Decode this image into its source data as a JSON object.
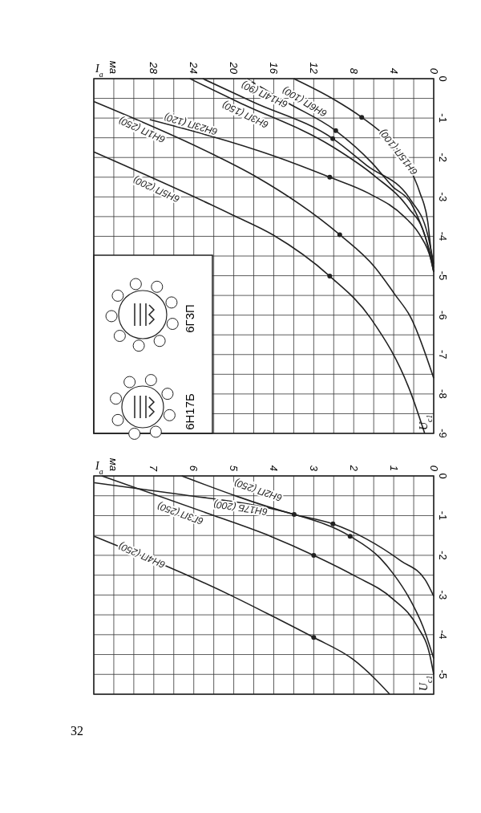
{
  "chart_data": [
    {
      "type": "line",
      "xlabel": "I$_{a}$",
      "ylabel": "U$_{c1}$",
      "xlim": [
        34,
        0
      ],
      "ylim": [
        -9,
        0
      ],
      "yticks": [
        0,
        {
          "value": -0.5,
          "label": null
        },
        -1,
        {
          "value": -1.5,
          "label": null
        },
        -2,
        {
          "value": -2.5,
          "label": null
        },
        -3,
        {
          "value": -3.5,
          "label": null
        },
        -4,
        {
          "value": -4.5,
          "label": null
        },
        -5,
        {
          "value": -5.5,
          "label": null
        },
        -6,
        {
          "value": -6.5,
          "label": null
        },
        -7,
        {
          "value": -7.5,
          "label": null
        },
        -8,
        {
          "value": -8.5,
          "label": null
        },
        -9
      ],
      "xticks": [
        0,
        {
          "value": 2,
          "label": null
        },
        4,
        {
          "value": 6,
          "label": null
        },
        8,
        {
          "value": 10,
          "label": null
        },
        12,
        {
          "value": 14,
          "label": null
        },
        16,
        {
          "value": 18,
          "label": null
        },
        20,
        {
          "value": 22,
          "label": null
        },
        24,
        {
          "value": 26,
          "label": null
        },
        28,
        {
          "value": 30,
          "label": null
        },
        {
          "value": 32,
          "label": "ма"
        },
        {
          "value": 34,
          "label": null
        }
      ],
      "grid": true,
      "legend": false,
      "annotations": [
        "6Н17Б",
        "6Г3П"
      ],
      "series": [
        {
          "name": "6Н15П (100)",
          "color": "#222222",
          "x": [
            14,
            10.1,
            7.2,
            4.6,
            2.7,
            1.4,
            0.6,
            0.2,
            0
          ],
          "values": [
            0,
            -0.51,
            -0.98,
            -1.52,
            -2.13,
            -2.88,
            -3.62,
            -4.5,
            -4.8
          ]
        },
        {
          "name": "6Н6П (100)",
          "color": "#222222",
          "x": [
            18.7,
            14.7,
            9.8,
            6.2,
            4.1,
            2.3,
            1.1,
            0.3,
            0
          ],
          "values": [
            0,
            -0.6,
            -1.32,
            -2.13,
            -2.74,
            -3.15,
            -3.83,
            -4.5,
            -4.9
          ]
        },
        {
          "name": "6Н14П (90)",
          "color": "#222222",
          "x": [
            23.1,
            18,
            10.1,
            6.7,
            2.3,
            0.6,
            0
          ],
          "values": [
            0,
            -0.6,
            -1.52,
            -2.2,
            -3.08,
            -3.96,
            -4.7
          ]
        },
        {
          "name": "6Н3П (150)",
          "color": "#222222",
          "x": [
            24.4,
            19.5,
            10.1,
            5.9,
            2.5,
            0.9,
            0
          ],
          "values": [
            0,
            -0.6,
            -1.73,
            -2.47,
            -3.29,
            -3.96,
            -4.9
          ]
        },
        {
          "name": "6Н23П (120)",
          "color": "#222222",
          "x": [
            28.4,
            16,
            10.4,
            6.5,
            3,
            1.4,
            0.3,
            0
          ],
          "values": [
            -1.04,
            -1.96,
            -2.5,
            -2.91,
            -3.49,
            -3.96,
            -4.57,
            -4.9
          ]
        },
        {
          "name": "6Н1П (250)",
          "color": "#222222",
          "x": [
            34,
            22,
            17.9,
            9.4,
            5.9,
            3.9,
            2.25,
            0
          ],
          "values": [
            -0.58,
            -1.93,
            -2.47,
            -3.96,
            -4.78,
            -5.47,
            -6.08,
            -7.6
          ]
        },
        {
          "name": "6Н5П (200)",
          "color": "#222222",
          "x": [
            34,
            20.1,
            16.1,
            10.4,
            6.3,
            2.25,
            0.9
          ],
          "values": [
            -1.86,
            -3.46,
            -3.96,
            -5.01,
            -6.08,
            -8,
            -9
          ]
        },
        {
          "type": "scatter",
          "color": "#222222",
          "x": [
            7.2,
            9.8,
            10.1,
            10.4,
            9.4,
            10.4
          ],
          "values": [
            -0.98,
            -1.32,
            -1.52,
            -2.5,
            -3.96,
            -5.01
          ]
        }
      ]
    },
    {
      "type": "line",
      "xlabel": "I$_{a}$",
      "ylabel": "U$_{c1}$",
      "xlim": [
        8.5,
        0
      ],
      "ylim": [
        -5.5,
        0
      ],
      "yticks": [
        0,
        {
          "value": -0.5,
          "label": null
        },
        -1,
        {
          "value": -1.5,
          "label": null
        },
        -2,
        {
          "value": -2.5,
          "label": null
        },
        -3,
        {
          "value": -3.5,
          "label": null
        },
        -4,
        {
          "value": -4.5,
          "label": null
        },
        -5,
        {
          "value": -5.5,
          "label": null
        }
      ],
      "xticks": [
        0,
        {
          "value": 0.5,
          "label": null
        },
        1,
        {
          "value": 1.5,
          "label": null
        },
        2,
        {
          "value": 2.5,
          "label": null
        },
        3,
        {
          "value": 3.5,
          "label": null
        },
        4,
        {
          "value": 4.5,
          "label": null
        },
        5,
        {
          "value": 5.5,
          "label": null
        },
        6,
        {
          "value": 6.5,
          "label": null
        },
        7,
        {
          "value": 7.5,
          "label": null
        },
        {
          "value": 8,
          "label": "ма"
        },
        {
          "value": 8.5,
          "label": null
        }
      ],
      "grid": true,
      "legend": false,
      "annotations": [
        "32"
      ],
      "series": [
        {
          "name": "6Н2П (250)",
          "color": "#222222",
          "x": [
            6.3,
            3.49,
            2.52,
            1.68,
            0.82,
            0.21,
            0
          ],
          "values": [
            0,
            -0.97,
            -1.21,
            -1.59,
            -2.14,
            -2.62,
            -3.03
          ]
        },
        {
          "name": "6Н17Б (200)",
          "color": "#222222",
          "x": [
            8.49,
            6.23,
            4.36,
            3.49,
            2.09,
            1.34,
            1,
            0.6,
            0.27,
            0
          ],
          "values": [
            -0.17,
            -0.48,
            -0.76,
            -0.97,
            -1.52,
            -2.07,
            -2.48,
            -3.1,
            -3.79,
            -4.6
          ]
        },
        {
          "name": "6Г3П (250)",
          "color": "#222222",
          "x": [
            8.3,
            5.49,
            4.08,
            3,
            1.97,
            1.02,
            0.41,
            0.1,
            0
          ],
          "values": [
            0,
            -1,
            -1.52,
            -2,
            -2.52,
            -3.1,
            -3.79,
            -4.5,
            -5
          ]
        },
        {
          "name": "6Н4П (250)",
          "color": "#222222",
          "x": [
            8.49,
            5.03,
            4,
            3,
            2.02,
            1.48,
            1.1
          ],
          "values": [
            -1.52,
            -3.03,
            -3.55,
            -4.07,
            -4.62,
            -5.1,
            -5.5
          ]
        },
        {
          "type": "scatter",
          "color": "#222222",
          "x": [
            3.49,
            2.52,
            2.09,
            3,
            3
          ],
          "values": [
            -0.97,
            -1.21,
            -1.52,
            -2,
            -4.07
          ]
        }
      ]
    }
  ]
}
